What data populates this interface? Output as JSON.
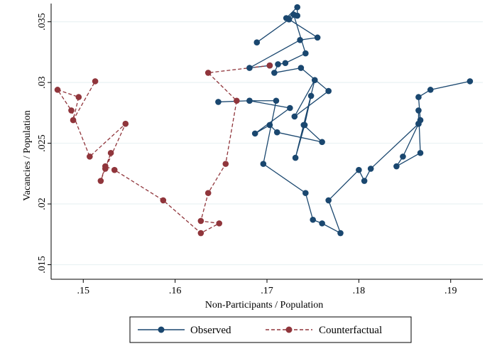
{
  "chart_data": {
    "type": "scatter",
    "xlabel": "Non-Participants / Population",
    "ylabel": "Vacancies / Population",
    "xlim": [
      0.1465,
      0.1935
    ],
    "ylim": [
      0.0138,
      0.0365
    ],
    "x_ticks": [
      0.15,
      0.16,
      0.17,
      0.18,
      0.19
    ],
    "x_tick_labels": [
      ".15",
      ".16",
      ".17",
      ".18",
      ".19"
    ],
    "y_ticks": [
      0.015,
      0.02,
      0.025,
      0.03,
      0.035
    ],
    "y_tick_labels": [
      ".015",
      ".02",
      ".025",
      ".03",
      ".035"
    ],
    "grid": true,
    "legend_position": "bottom",
    "series": [
      {
        "name": "Observed",
        "color": "#1a476f",
        "line_style": "solid",
        "marker": "circle",
        "points": [
          [
            0.1921,
            0.0301
          ],
          [
            0.1878,
            0.0294
          ],
          [
            0.1865,
            0.0288
          ],
          [
            0.1867,
            0.0269
          ],
          [
            0.1865,
            0.0266
          ],
          [
            0.1865,
            0.0277
          ],
          [
            0.1867,
            0.0242
          ],
          [
            0.1841,
            0.0231
          ],
          [
            0.1848,
            0.0239
          ],
          [
            0.1865,
            0.0266
          ],
          [
            0.1813,
            0.0229
          ],
          [
            0.1806,
            0.0219
          ],
          [
            0.18,
            0.0228
          ],
          [
            0.1767,
            0.0203
          ],
          [
            0.178,
            0.0176
          ],
          [
            0.176,
            0.0184
          ],
          [
            0.175,
            0.0187
          ],
          [
            0.1742,
            0.0209
          ],
          [
            0.1696,
            0.0233
          ],
          [
            0.171,
            0.0285
          ],
          [
            0.1681,
            0.0285
          ],
          [
            0.1647,
            0.0284
          ],
          [
            0.1681,
            0.0285
          ],
          [
            0.1725,
            0.0279
          ],
          [
            0.1687,
            0.0258
          ],
          [
            0.1703,
            0.0265
          ],
          [
            0.1711,
            0.0259
          ],
          [
            0.176,
            0.0251
          ],
          [
            0.174,
            0.0265
          ],
          [
            0.1748,
            0.0289
          ],
          [
            0.1741,
            0.0265
          ],
          [
            0.1731,
            0.0238
          ],
          [
            0.1752,
            0.0302
          ],
          [
            0.173,
            0.0272
          ],
          [
            0.1767,
            0.0293
          ],
          [
            0.1737,
            0.0312
          ],
          [
            0.1708,
            0.0308
          ],
          [
            0.1712,
            0.0315
          ],
          [
            0.172,
            0.0316
          ],
          [
            0.1742,
            0.0324
          ],
          [
            0.1729,
            0.0356
          ],
          [
            0.1721,
            0.0353
          ],
          [
            0.1733,
            0.0362
          ],
          [
            0.1733,
            0.0355
          ],
          [
            0.1724,
            0.0352
          ],
          [
            0.1689,
            0.0333
          ],
          [
            0.1724,
            0.0352
          ],
          [
            0.1755,
            0.0337
          ],
          [
            0.1736,
            0.0335
          ],
          [
            0.1681,
            0.0312
          ],
          [
            0.1703,
            0.0314
          ]
        ]
      },
      {
        "name": "Counterfactual",
        "color": "#90353b",
        "line_style": "dashed",
        "marker": "circle",
        "points": [
          [
            0.1703,
            0.0314
          ],
          [
            0.1636,
            0.0308
          ],
          [
            0.1667,
            0.0285
          ],
          [
            0.1655,
            0.0233
          ],
          [
            0.1636,
            0.0209
          ],
          [
            0.1628,
            0.0186
          ],
          [
            0.1648,
            0.0184
          ],
          [
            0.1628,
            0.0176
          ],
          [
            0.1587,
            0.0203
          ],
          [
            0.1534,
            0.0228
          ],
          [
            0.1524,
            0.0231
          ],
          [
            0.1519,
            0.0219
          ],
          [
            0.153,
            0.0242
          ],
          [
            0.1524,
            0.0229
          ],
          [
            0.1546,
            0.0266
          ],
          [
            0.1507,
            0.0239
          ],
          [
            0.1487,
            0.0277
          ],
          [
            0.1472,
            0.0294
          ],
          [
            0.1495,
            0.0288
          ],
          [
            0.1489,
            0.0269
          ],
          [
            0.1513,
            0.0301
          ]
        ]
      }
    ]
  }
}
